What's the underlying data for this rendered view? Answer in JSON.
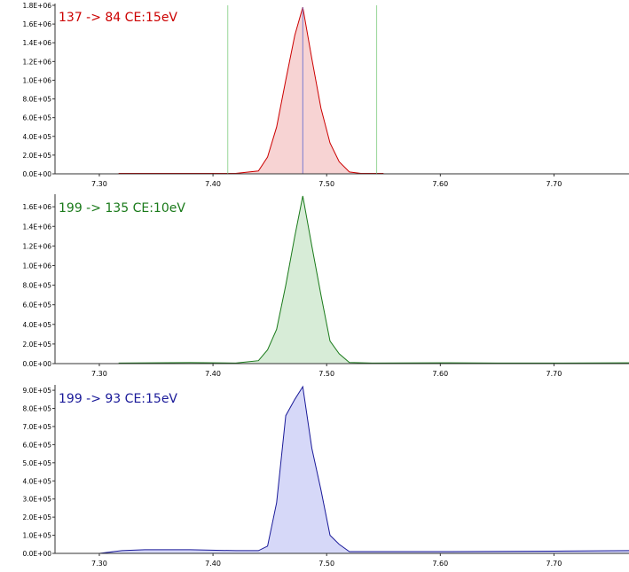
{
  "chart_data": [
    {
      "type": "area",
      "title": "137 -> 84 CE:15eV",
      "color": "#cc0000",
      "fill": "#f7d3d3",
      "yticks": [
        "0.0E+00",
        "2.0E+05",
        "4.0E+05",
        "6.0E+05",
        "8.0E+05",
        "1.0E+06",
        "1.2E+06",
        "1.4E+06",
        "1.6E+06",
        "1.8E+06"
      ],
      "ytick_values": [
        0,
        200000,
        400000,
        600000,
        800000,
        1000000,
        1200000,
        1400000,
        1600000,
        1800000
      ],
      "ylim": [
        0,
        1800000
      ],
      "xticks": [
        "7.30",
        "7.40",
        "7.50",
        "7.60",
        "7.70"
      ],
      "xtick_values": [
        7.3,
        7.4,
        7.5,
        7.6,
        7.7
      ],
      "xlim": [
        7.261,
        7.766
      ],
      "x": [
        7.317,
        7.42,
        7.44,
        7.448,
        7.456,
        7.464,
        7.472,
        7.479,
        7.487,
        7.495,
        7.503,
        7.511,
        7.52,
        7.53,
        7.55
      ],
      "y": [
        5000,
        5000,
        30000,
        180000,
        500000,
        1000000,
        1480000,
        1780000,
        1230000,
        700000,
        330000,
        130000,
        20000,
        5000,
        5000
      ],
      "markers": [
        7.413,
        7.479,
        7.544
      ]
    },
    {
      "type": "area",
      "title": "199 -> 135 CE:10eV",
      "color": "#1a7a1a",
      "fill": "#d7ecd7",
      "yticks": [
        "0.0E+00",
        "2.0E+05",
        "4.0E+05",
        "6.0E+05",
        "8.0E+05",
        "1.0E+06",
        "1.2E+06",
        "1.4E+06",
        "1.6E+06"
      ],
      "ytick_values": [
        0,
        200000,
        400000,
        600000,
        800000,
        1000000,
        1200000,
        1400000,
        1600000
      ],
      "ylim": [
        0,
        1710000
      ],
      "xticks": [
        "7.30",
        "7.40",
        "7.50",
        "7.60",
        "7.70"
      ],
      "xtick_values": [
        7.3,
        7.4,
        7.5,
        7.6,
        7.7
      ],
      "xlim": [
        7.261,
        7.766
      ],
      "x": [
        7.317,
        7.38,
        7.42,
        7.44,
        7.448,
        7.456,
        7.464,
        7.472,
        7.479,
        7.487,
        7.495,
        7.503,
        7.511,
        7.52,
        7.54,
        7.6,
        7.65,
        7.7,
        7.766
      ],
      "y": [
        5000,
        10000,
        5000,
        30000,
        140000,
        350000,
        800000,
        1300000,
        1710000,
        1200000,
        700000,
        230000,
        100000,
        12000,
        5000,
        8000,
        5000,
        5000,
        8000
      ],
      "markers": []
    },
    {
      "type": "area",
      "title": "199 -> 93 CE:15eV",
      "color": "#1a1a99",
      "fill": "#d6d8f8",
      "yticks": [
        "0.0E+00",
        "1.0E+05",
        "2.0E+05",
        "3.0E+05",
        "4.0E+05",
        "5.0E+05",
        "6.0E+05",
        "7.0E+05",
        "8.0E+05",
        "9.0E+05"
      ],
      "ytick_values": [
        0,
        100000,
        200000,
        300000,
        400000,
        500000,
        600000,
        700000,
        800000,
        900000
      ],
      "ylim": [
        0,
        920000
      ],
      "xticks": [
        "7.30",
        "7.40",
        "7.50",
        "7.60",
        "7.70"
      ],
      "xtick_values": [
        7.3,
        7.4,
        7.5,
        7.6,
        7.7
      ],
      "xlim": [
        7.261,
        7.766
      ],
      "x": [
        7.3,
        7.32,
        7.34,
        7.38,
        7.42,
        7.44,
        7.448,
        7.456,
        7.464,
        7.472,
        7.479,
        7.487,
        7.495,
        7.503,
        7.511,
        7.52,
        7.6,
        7.7,
        7.766
      ],
      "y": [
        0,
        15000,
        20000,
        20000,
        15000,
        15000,
        40000,
        280000,
        760000,
        850000,
        920000,
        580000,
        350000,
        100000,
        50000,
        10000,
        10000,
        12000,
        15000
      ],
      "markers": []
    }
  ]
}
